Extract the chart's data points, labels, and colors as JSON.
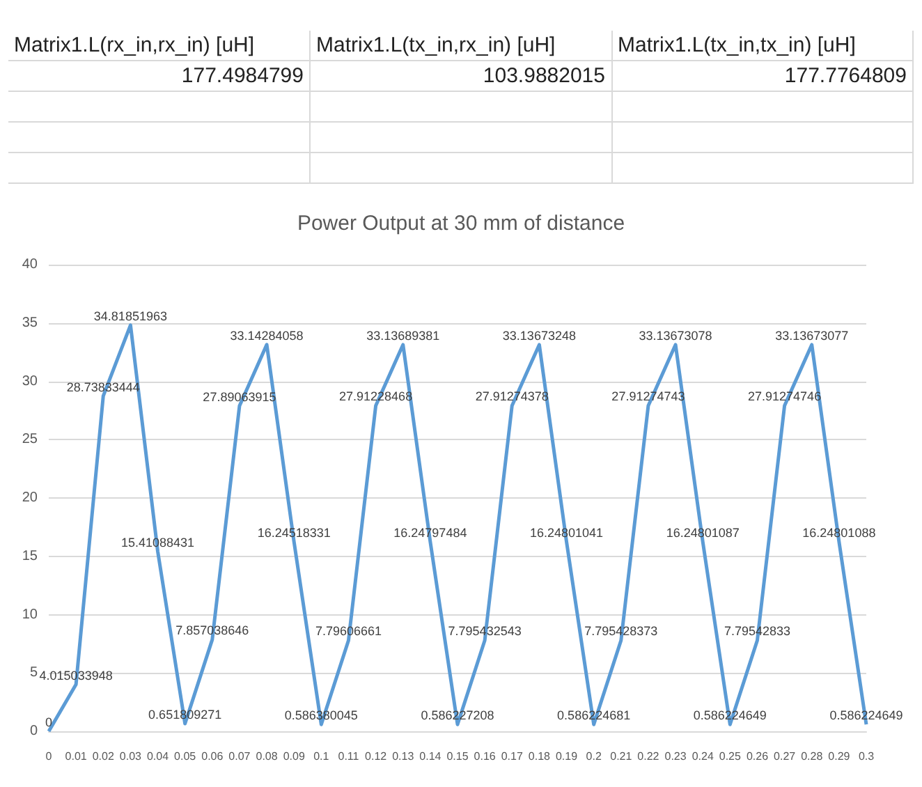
{
  "chart_data": [
    {
      "type": "other",
      "categories": [
        "Matrix1.L(rx_in,rx_in) [uH]",
        "Matrix1.L(tx_in,rx_in) [uH]",
        "Matrix1.L(tx_in,tx_in) [uH]"
      ],
      "values": [
        177.4984799,
        103.9882015,
        177.7764809
      ],
      "data_labels": true
    },
    {
      "type": "line",
      "title": "Power Output at 30 mm of distance",
      "categories": [
        "0",
        "0.01",
        "0.02",
        "0.03",
        "0.04",
        "0.05",
        "0.06",
        "0.07",
        "0.08",
        "0.09",
        "0.1",
        "0.11",
        "0.12",
        "0.13",
        "0.14",
        "0.15",
        "0.16",
        "0.17",
        "0.18",
        "0.19",
        "0.2",
        "0.21",
        "0.22",
        "0.23",
        "0.24",
        "0.25",
        "0.26",
        "0.27",
        "0.28",
        "0.29",
        "0.3"
      ],
      "values": [
        0,
        4.015033948,
        28.73833444,
        34.81851963,
        15.41088431,
        0.651809271,
        7.857038646,
        27.89063915,
        33.14284058,
        16.24518331,
        0.586380045,
        7.79606661,
        27.91228468,
        33.13689381,
        16.24797484,
        0.586227208,
        7.795432543,
        27.91274378,
        33.13673248,
        16.24801041,
        0.586224681,
        7.795428373,
        27.91274743,
        33.13673078,
        16.24801087,
        0.586224649,
        7.79542833,
        27.91274746,
        33.13673077,
        16.24801088,
        0.586224649
      ],
      "color": "#5b9bd5",
      "ylim": [
        0,
        40
      ],
      "yticks": [
        0,
        5,
        10,
        15,
        20,
        25,
        30,
        35,
        40
      ],
      "grid": "y",
      "data_labels": true,
      "marker": "none"
    }
  ]
}
